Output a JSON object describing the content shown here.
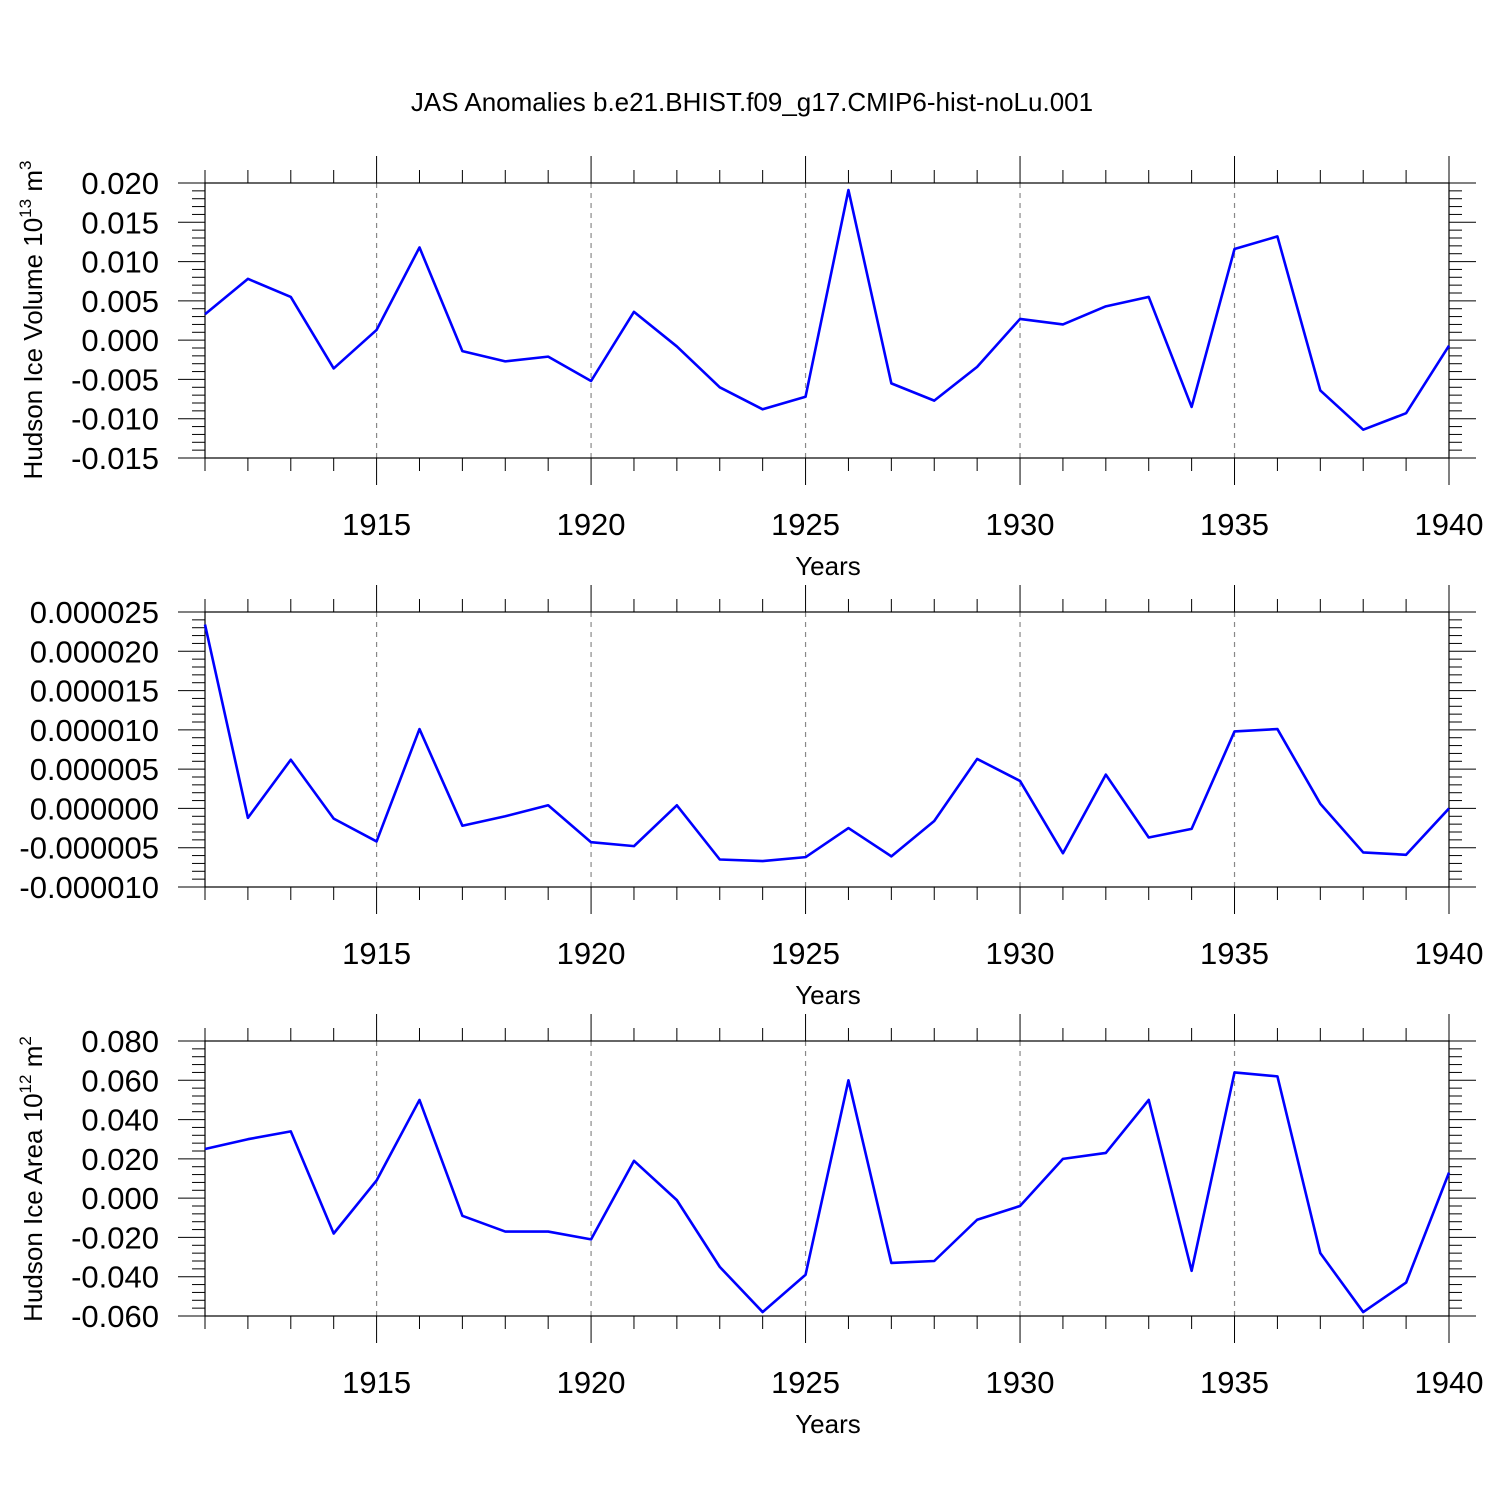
{
  "chart_data": [
    {
      "type": "line",
      "title": "JAS Anomalies b.e21.BHIST.f09_g17.CMIP6-hist-noLu.001",
      "xlabel": "Years",
      "ylabel": "Hudson Ice Volume 10",
      "ylabel_sup": "13",
      "ylabel_unit": "m",
      "ylabel_unit_sup": "3",
      "xlim": [
        1911,
        1940
      ],
      "ylim": [
        -0.015,
        0.02
      ],
      "xticks": [
        1915,
        1920,
        1925,
        1930,
        1935,
        1940
      ],
      "yticks": [
        "-0.015",
        "-0.010",
        "-0.005",
        "0.000",
        "0.005",
        "0.010",
        "0.015",
        "0.020"
      ],
      "grid": "dashed vertical at major x ticks",
      "color": "#0000ff",
      "x": [
        1911,
        1912,
        1913,
        1914,
        1915,
        1916,
        1917,
        1918,
        1919,
        1920,
        1921,
        1922,
        1923,
        1924,
        1925,
        1926,
        1927,
        1928,
        1929,
        1930,
        1931,
        1932,
        1933,
        1934,
        1935,
        1936,
        1937,
        1938,
        1939,
        1940
      ],
      "series": [
        {
          "values": [
            0.0033,
            0.0078,
            0.0055,
            -0.0036,
            0.0013,
            0.0118,
            -0.0014,
            -0.0027,
            -0.0021,
            -0.0052,
            0.0036,
            -0.0008,
            -0.006,
            -0.0088,
            -0.0072,
            0.0191,
            -0.0055,
            -0.0077,
            -0.0034,
            0.0027,
            0.002,
            0.0043,
            0.0055,
            -0.0085,
            0.0116,
            0.0132,
            -0.0064,
            -0.0114,
            -0.0093,
            -0.0007
          ]
        }
      ]
    },
    {
      "type": "line",
      "xlabel": "Years",
      "ylabel": "",
      "xlim": [
        1911,
        1940
      ],
      "ylim": [
        -1e-05,
        2.5e-05
      ],
      "xticks": [
        1915,
        1920,
        1925,
        1930,
        1935,
        1940
      ],
      "yticks": [
        "-0.000010",
        "-0.000005",
        "0.000000",
        "0.000005",
        "0.000010",
        "0.000015",
        "0.000020",
        "0.000025"
      ],
      "grid": "dashed vertical at major x ticks",
      "color": "#0000ff",
      "x": [
        1911,
        1912,
        1913,
        1914,
        1915,
        1916,
        1917,
        1918,
        1919,
        1920,
        1921,
        1922,
        1923,
        1924,
        1925,
        1926,
        1927,
        1928,
        1929,
        1930,
        1931,
        1932,
        1933,
        1934,
        1935,
        1936,
        1937,
        1938,
        1939,
        1940
      ],
      "series": [
        {
          "values": [
            2.34e-05,
            -1.2e-06,
            6.2e-06,
            -1.3e-06,
            -4.2e-06,
            1.01e-05,
            -2.2e-06,
            -1e-06,
            4e-07,
            -4.3e-06,
            -4.8e-06,
            4e-07,
            -6.5e-06,
            -6.7e-06,
            -6.2e-06,
            -2.5e-06,
            -6.1e-06,
            -1.6e-06,
            6.3e-06,
            3.5e-06,
            -5.7e-06,
            4.3e-06,
            -3.7e-06,
            -2.6e-06,
            9.8e-06,
            1.01e-05,
            6e-07,
            -5.6e-06,
            -5.9e-06,
            0.0
          ]
        }
      ]
    },
    {
      "type": "line",
      "xlabel": "Years",
      "ylabel": "Hudson Ice Area 10",
      "ylabel_sup": "12",
      "ylabel_unit": "m",
      "ylabel_unit_sup": "2",
      "xlim": [
        1911,
        1940
      ],
      "ylim": [
        -0.06,
        0.08
      ],
      "xticks": [
        1915,
        1920,
        1925,
        1930,
        1935,
        1940
      ],
      "yticks": [
        "-0.060",
        "-0.040",
        "-0.020",
        "0.000",
        "0.020",
        "0.040",
        "0.060",
        "0.080"
      ],
      "grid": "dashed vertical at major x ticks",
      "color": "#0000ff",
      "x": [
        1911,
        1912,
        1913,
        1914,
        1915,
        1916,
        1917,
        1918,
        1919,
        1920,
        1921,
        1922,
        1923,
        1924,
        1925,
        1926,
        1927,
        1928,
        1929,
        1930,
        1931,
        1932,
        1933,
        1934,
        1935,
        1936,
        1937,
        1938,
        1939,
        1940
      ],
      "series": [
        {
          "values": [
            0.025,
            0.03,
            0.034,
            -0.018,
            0.009,
            0.05,
            -0.009,
            -0.017,
            -0.017,
            -0.021,
            0.019,
            -0.001,
            -0.035,
            -0.058,
            -0.039,
            0.06,
            -0.033,
            -0.032,
            -0.011,
            -0.004,
            0.02,
            0.023,
            0.05,
            -0.037,
            0.064,
            0.062,
            -0.028,
            -0.058,
            -0.043,
            0.013
          ]
        }
      ]
    }
  ]
}
